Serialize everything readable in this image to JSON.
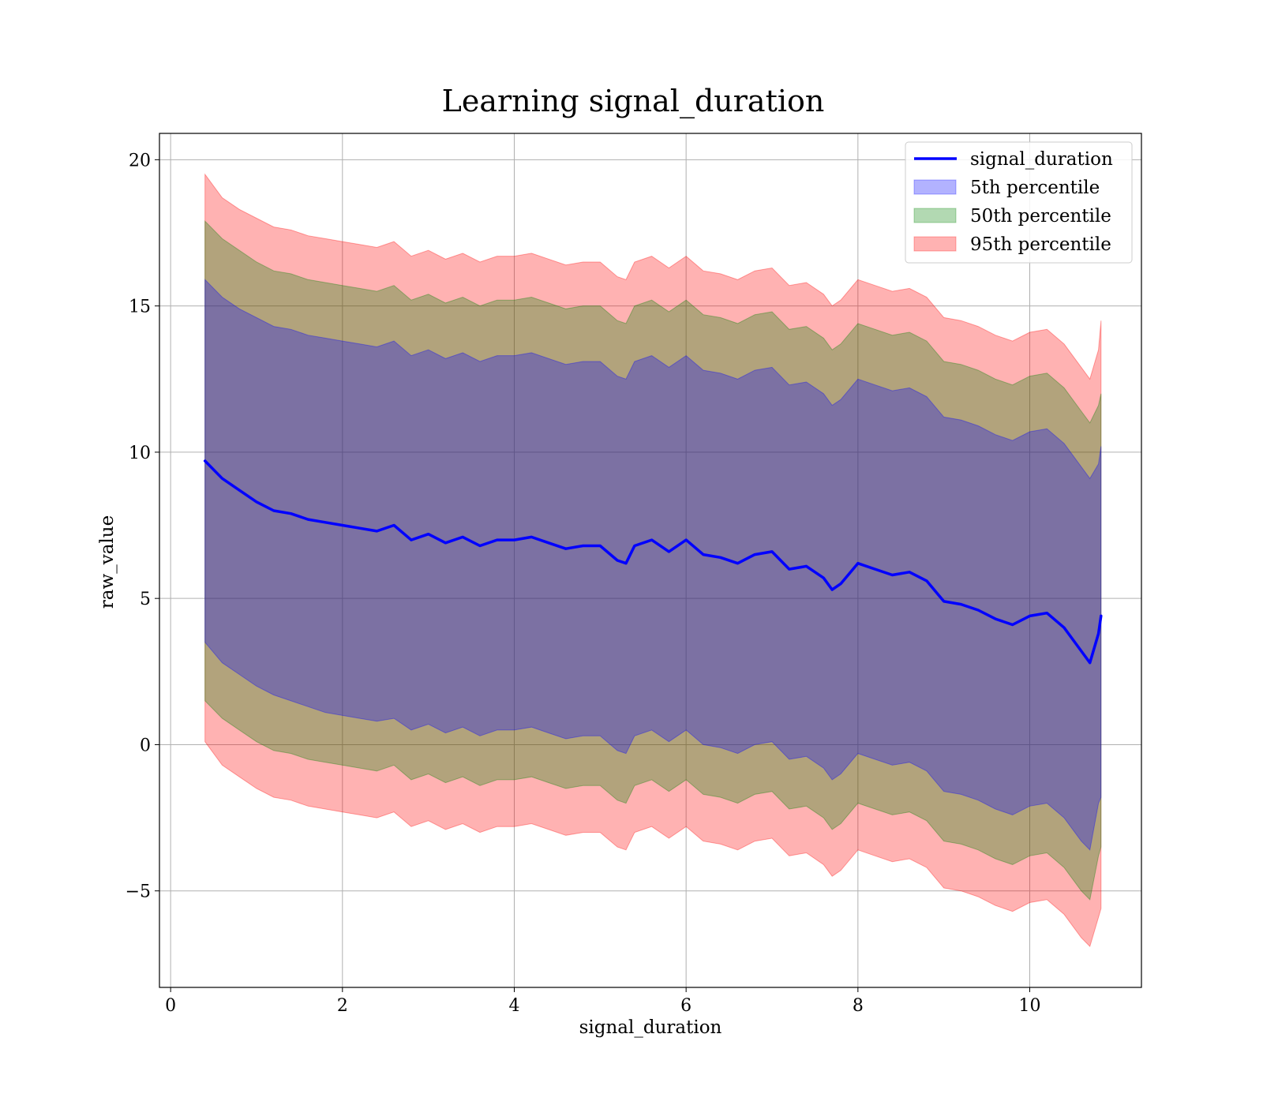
{
  "chart_data": {
    "type": "line",
    "title": "Learning signal_duration",
    "xlabel": "signal_duration",
    "ylabel": "raw_value",
    "xlim": [
      -0.13,
      11.3
    ],
    "ylim": [
      -8.3,
      20.9
    ],
    "xticks": [
      0,
      2,
      4,
      6,
      8,
      10
    ],
    "xtick_labels": [
      "0",
      "2",
      "4",
      "6",
      "8",
      "10"
    ],
    "yticks": [
      -5,
      0,
      5,
      10,
      15,
      20
    ],
    "ytick_labels": [
      "−5",
      "0",
      "5",
      "10",
      "15",
      "20"
    ],
    "grid": true,
    "legend_position": "top-right",
    "colors": {
      "line": "#0000ff",
      "p5": "#0000ff",
      "p50": "#008000",
      "p95": "#ff0000"
    },
    "series": [
      {
        "name": "signal_duration",
        "kind": "line",
        "x": [
          0.4,
          0.6,
          0.8,
          1.0,
          1.2,
          1.4,
          1.6,
          1.8,
          2.0,
          2.2,
          2.4,
          2.6,
          2.8,
          3.0,
          3.2,
          3.4,
          3.6,
          3.8,
          4.0,
          4.2,
          4.4,
          4.6,
          4.8,
          5.0,
          5.2,
          5.3,
          5.4,
          5.6,
          5.8,
          6.0,
          6.2,
          6.4,
          6.6,
          6.8,
          7.0,
          7.2,
          7.4,
          7.6,
          7.7,
          7.8,
          8.0,
          8.2,
          8.4,
          8.6,
          8.8,
          9.0,
          9.2,
          9.4,
          9.6,
          9.8,
          10.0,
          10.2,
          10.4,
          10.6,
          10.7,
          10.8,
          10.83
        ],
        "values": [
          9.7,
          9.1,
          8.7,
          8.3,
          8.0,
          7.9,
          7.7,
          7.6,
          7.5,
          7.4,
          7.3,
          7.5,
          7.0,
          7.2,
          6.9,
          7.1,
          6.8,
          7.0,
          7.0,
          7.1,
          6.9,
          6.7,
          6.8,
          6.8,
          6.3,
          6.2,
          6.8,
          7.0,
          6.6,
          7.0,
          6.5,
          6.4,
          6.2,
          6.5,
          6.6,
          6.0,
          6.1,
          5.7,
          5.3,
          5.5,
          6.2,
          6.0,
          5.8,
          5.9,
          5.6,
          4.9,
          4.8,
          4.6,
          4.3,
          4.1,
          4.4,
          4.5,
          4.0,
          3.2,
          2.8,
          3.8,
          4.4
        ]
      },
      {
        "name": "5th percentile",
        "kind": "band",
        "x": [
          0.4,
          0.6,
          0.8,
          1.0,
          1.2,
          1.4,
          1.6,
          1.8,
          2.0,
          2.2,
          2.4,
          2.6,
          2.8,
          3.0,
          3.2,
          3.4,
          3.6,
          3.8,
          4.0,
          4.2,
          4.4,
          4.6,
          4.8,
          5.0,
          5.2,
          5.3,
          5.4,
          5.6,
          5.8,
          6.0,
          6.2,
          6.4,
          6.6,
          6.8,
          7.0,
          7.2,
          7.4,
          7.6,
          7.7,
          7.8,
          8.0,
          8.2,
          8.4,
          8.6,
          8.8,
          9.0,
          9.2,
          9.4,
          9.6,
          9.8,
          10.0,
          10.2,
          10.4,
          10.6,
          10.7,
          10.8,
          10.83
        ],
        "lower": [
          3.5,
          2.8,
          2.4,
          2.0,
          1.7,
          1.5,
          1.3,
          1.1,
          1.0,
          0.9,
          0.8,
          0.9,
          0.5,
          0.7,
          0.4,
          0.6,
          0.3,
          0.5,
          0.5,
          0.6,
          0.4,
          0.2,
          0.3,
          0.3,
          -0.2,
          -0.3,
          0.3,
          0.5,
          0.1,
          0.5,
          0.0,
          -0.1,
          -0.3,
          0.0,
          0.1,
          -0.5,
          -0.4,
          -0.8,
          -1.2,
          -1.0,
          -0.3,
          -0.5,
          -0.7,
          -0.6,
          -0.9,
          -1.6,
          -1.7,
          -1.9,
          -2.2,
          -2.4,
          -2.1,
          -2.0,
          -2.5,
          -3.3,
          -3.6,
          -2.0,
          -1.8
        ],
        "upper": [
          15.9,
          15.3,
          14.9,
          14.6,
          14.3,
          14.2,
          14.0,
          13.9,
          13.8,
          13.7,
          13.6,
          13.8,
          13.3,
          13.5,
          13.2,
          13.4,
          13.1,
          13.3,
          13.3,
          13.4,
          13.2,
          13.0,
          13.1,
          13.1,
          12.6,
          12.5,
          13.1,
          13.3,
          12.9,
          13.3,
          12.8,
          12.7,
          12.5,
          12.8,
          12.9,
          12.3,
          12.4,
          12.0,
          11.6,
          11.8,
          12.5,
          12.3,
          12.1,
          12.2,
          11.9,
          11.2,
          11.1,
          10.9,
          10.6,
          10.4,
          10.7,
          10.8,
          10.3,
          9.5,
          9.1,
          9.6,
          10.2
        ]
      },
      {
        "name": "50th percentile",
        "kind": "band",
        "x": [
          0.4,
          0.6,
          0.8,
          1.0,
          1.2,
          1.4,
          1.6,
          1.8,
          2.0,
          2.2,
          2.4,
          2.6,
          2.8,
          3.0,
          3.2,
          3.4,
          3.6,
          3.8,
          4.0,
          4.2,
          4.4,
          4.6,
          4.8,
          5.0,
          5.2,
          5.3,
          5.4,
          5.6,
          5.8,
          6.0,
          6.2,
          6.4,
          6.6,
          6.8,
          7.0,
          7.2,
          7.4,
          7.6,
          7.7,
          7.8,
          8.0,
          8.2,
          8.4,
          8.6,
          8.8,
          9.0,
          9.2,
          9.4,
          9.6,
          9.8,
          10.0,
          10.2,
          10.4,
          10.6,
          10.7,
          10.8,
          10.83
        ],
        "lower": [
          1.5,
          0.9,
          0.5,
          0.1,
          -0.2,
          -0.3,
          -0.5,
          -0.6,
          -0.7,
          -0.8,
          -0.9,
          -0.7,
          -1.2,
          -1.0,
          -1.3,
          -1.1,
          -1.4,
          -1.2,
          -1.2,
          -1.1,
          -1.3,
          -1.5,
          -1.4,
          -1.4,
          -1.9,
          -2.0,
          -1.4,
          -1.2,
          -1.6,
          -1.2,
          -1.7,
          -1.8,
          -2.0,
          -1.7,
          -1.6,
          -2.2,
          -2.1,
          -2.5,
          -2.9,
          -2.7,
          -2.0,
          -2.2,
          -2.4,
          -2.3,
          -2.6,
          -3.3,
          -3.4,
          -3.6,
          -3.9,
          -4.1,
          -3.8,
          -3.7,
          -4.2,
          -5.0,
          -5.3,
          -3.8,
          -3.5
        ],
        "upper": [
          17.9,
          17.3,
          16.9,
          16.5,
          16.2,
          16.1,
          15.9,
          15.8,
          15.7,
          15.6,
          15.5,
          15.7,
          15.2,
          15.4,
          15.1,
          15.3,
          15.0,
          15.2,
          15.2,
          15.3,
          15.1,
          14.9,
          15.0,
          15.0,
          14.5,
          14.4,
          15.0,
          15.2,
          14.8,
          15.2,
          14.7,
          14.6,
          14.4,
          14.7,
          14.8,
          14.2,
          14.3,
          13.9,
          13.5,
          13.7,
          14.4,
          14.2,
          14.0,
          14.1,
          13.8,
          13.1,
          13.0,
          12.8,
          12.5,
          12.3,
          12.6,
          12.7,
          12.2,
          11.4,
          11.0,
          11.6,
          12.0
        ]
      },
      {
        "name": "95th percentile",
        "kind": "band",
        "x": [
          0.4,
          0.6,
          0.8,
          1.0,
          1.2,
          1.4,
          1.6,
          1.8,
          2.0,
          2.2,
          2.4,
          2.6,
          2.8,
          3.0,
          3.2,
          3.4,
          3.6,
          3.8,
          4.0,
          4.2,
          4.4,
          4.6,
          4.8,
          5.0,
          5.2,
          5.3,
          5.4,
          5.6,
          5.8,
          6.0,
          6.2,
          6.4,
          6.6,
          6.8,
          7.0,
          7.2,
          7.4,
          7.6,
          7.7,
          7.8,
          8.0,
          8.2,
          8.4,
          8.6,
          8.8,
          9.0,
          9.2,
          9.4,
          9.6,
          9.8,
          10.0,
          10.2,
          10.4,
          10.6,
          10.7,
          10.8,
          10.83
        ],
        "lower": [
          0.1,
          -0.7,
          -1.1,
          -1.5,
          -1.8,
          -1.9,
          -2.1,
          -2.2,
          -2.3,
          -2.4,
          -2.5,
          -2.3,
          -2.8,
          -2.6,
          -2.9,
          -2.7,
          -3.0,
          -2.8,
          -2.8,
          -2.7,
          -2.9,
          -3.1,
          -3.0,
          -3.0,
          -3.5,
          -3.6,
          -3.0,
          -2.8,
          -3.2,
          -2.8,
          -3.3,
          -3.4,
          -3.6,
          -3.3,
          -3.2,
          -3.8,
          -3.7,
          -4.1,
          -4.5,
          -4.3,
          -3.6,
          -3.8,
          -4.0,
          -3.9,
          -4.2,
          -4.9,
          -5.0,
          -5.2,
          -5.5,
          -5.7,
          -5.4,
          -5.3,
          -5.8,
          -6.6,
          -6.9,
          -5.9,
          -5.6
        ],
        "upper": [
          19.5,
          18.7,
          18.3,
          18.0,
          17.7,
          17.6,
          17.4,
          17.3,
          17.2,
          17.1,
          17.0,
          17.2,
          16.7,
          16.9,
          16.6,
          16.8,
          16.5,
          16.7,
          16.7,
          16.8,
          16.6,
          16.4,
          16.5,
          16.5,
          16.0,
          15.9,
          16.5,
          16.7,
          16.3,
          16.7,
          16.2,
          16.1,
          15.9,
          16.2,
          16.3,
          15.7,
          15.8,
          15.4,
          15.0,
          15.2,
          15.9,
          15.7,
          15.5,
          15.6,
          15.3,
          14.6,
          14.5,
          14.3,
          14.0,
          13.8,
          14.1,
          14.2,
          13.7,
          12.9,
          12.5,
          13.5,
          14.5
        ]
      }
    ]
  }
}
